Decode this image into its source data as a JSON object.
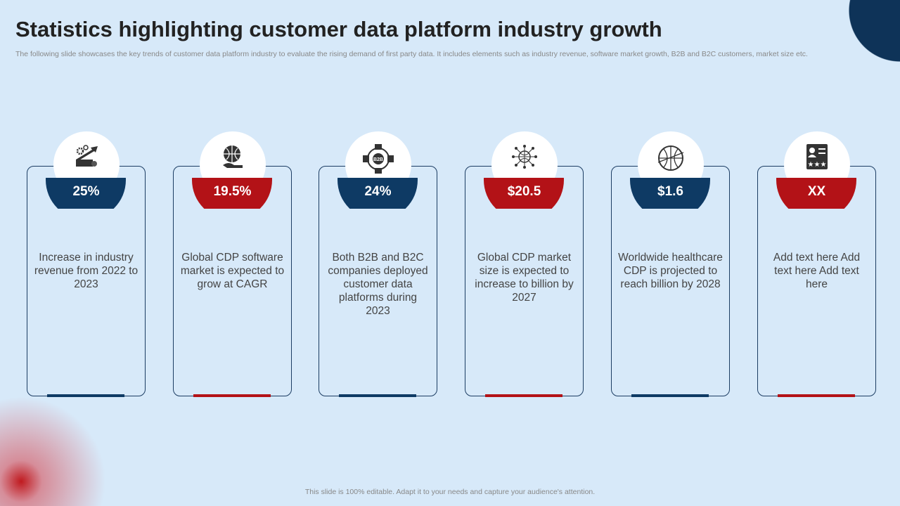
{
  "title": "Statistics highlighting customer data platform industry growth",
  "subtitle": "The following slide showcases the key trends of customer data platform industry to evaluate the rising demand of first party data. It includes elements such as industry revenue, software market growth, B2B and B2C customers, market size etc.",
  "colors": {
    "navy": "#0e3a64",
    "red": "#b31217",
    "background": "#d7e9f9"
  },
  "cards": [
    {
      "value": "25%",
      "text": "Increase in industry revenue from 2022 to 2023",
      "icon": "growth-chart-gears-icon",
      "color": "navy"
    },
    {
      "value": "19.5%",
      "text": "Global CDP software market is expected to grow at CAGR",
      "icon": "globe-hand-icon",
      "color": "red"
    },
    {
      "value": "24%",
      "text": "Both B2B and B2C companies deployed customer data platforms during 2023",
      "icon": "b2b-network-icon",
      "icon_label": "B2B",
      "color": "navy"
    },
    {
      "value": "$20.5",
      "text": "Global CDP market size is expected to increase to billion by 2027",
      "icon": "circuit-globe-icon",
      "color": "red"
    },
    {
      "value": "$1.6",
      "text": "Worldwide healthcare CDP is projected to reach billion by 2028",
      "icon": "globe-network-icon",
      "color": "navy"
    },
    {
      "value": "XX",
      "text": "Add text here Add text here Add text here",
      "icon": "profile-rating-icon",
      "color": "red"
    }
  ],
  "footer": "This slide is 100% editable.  Adapt it to your needs and capture your audience's attention."
}
